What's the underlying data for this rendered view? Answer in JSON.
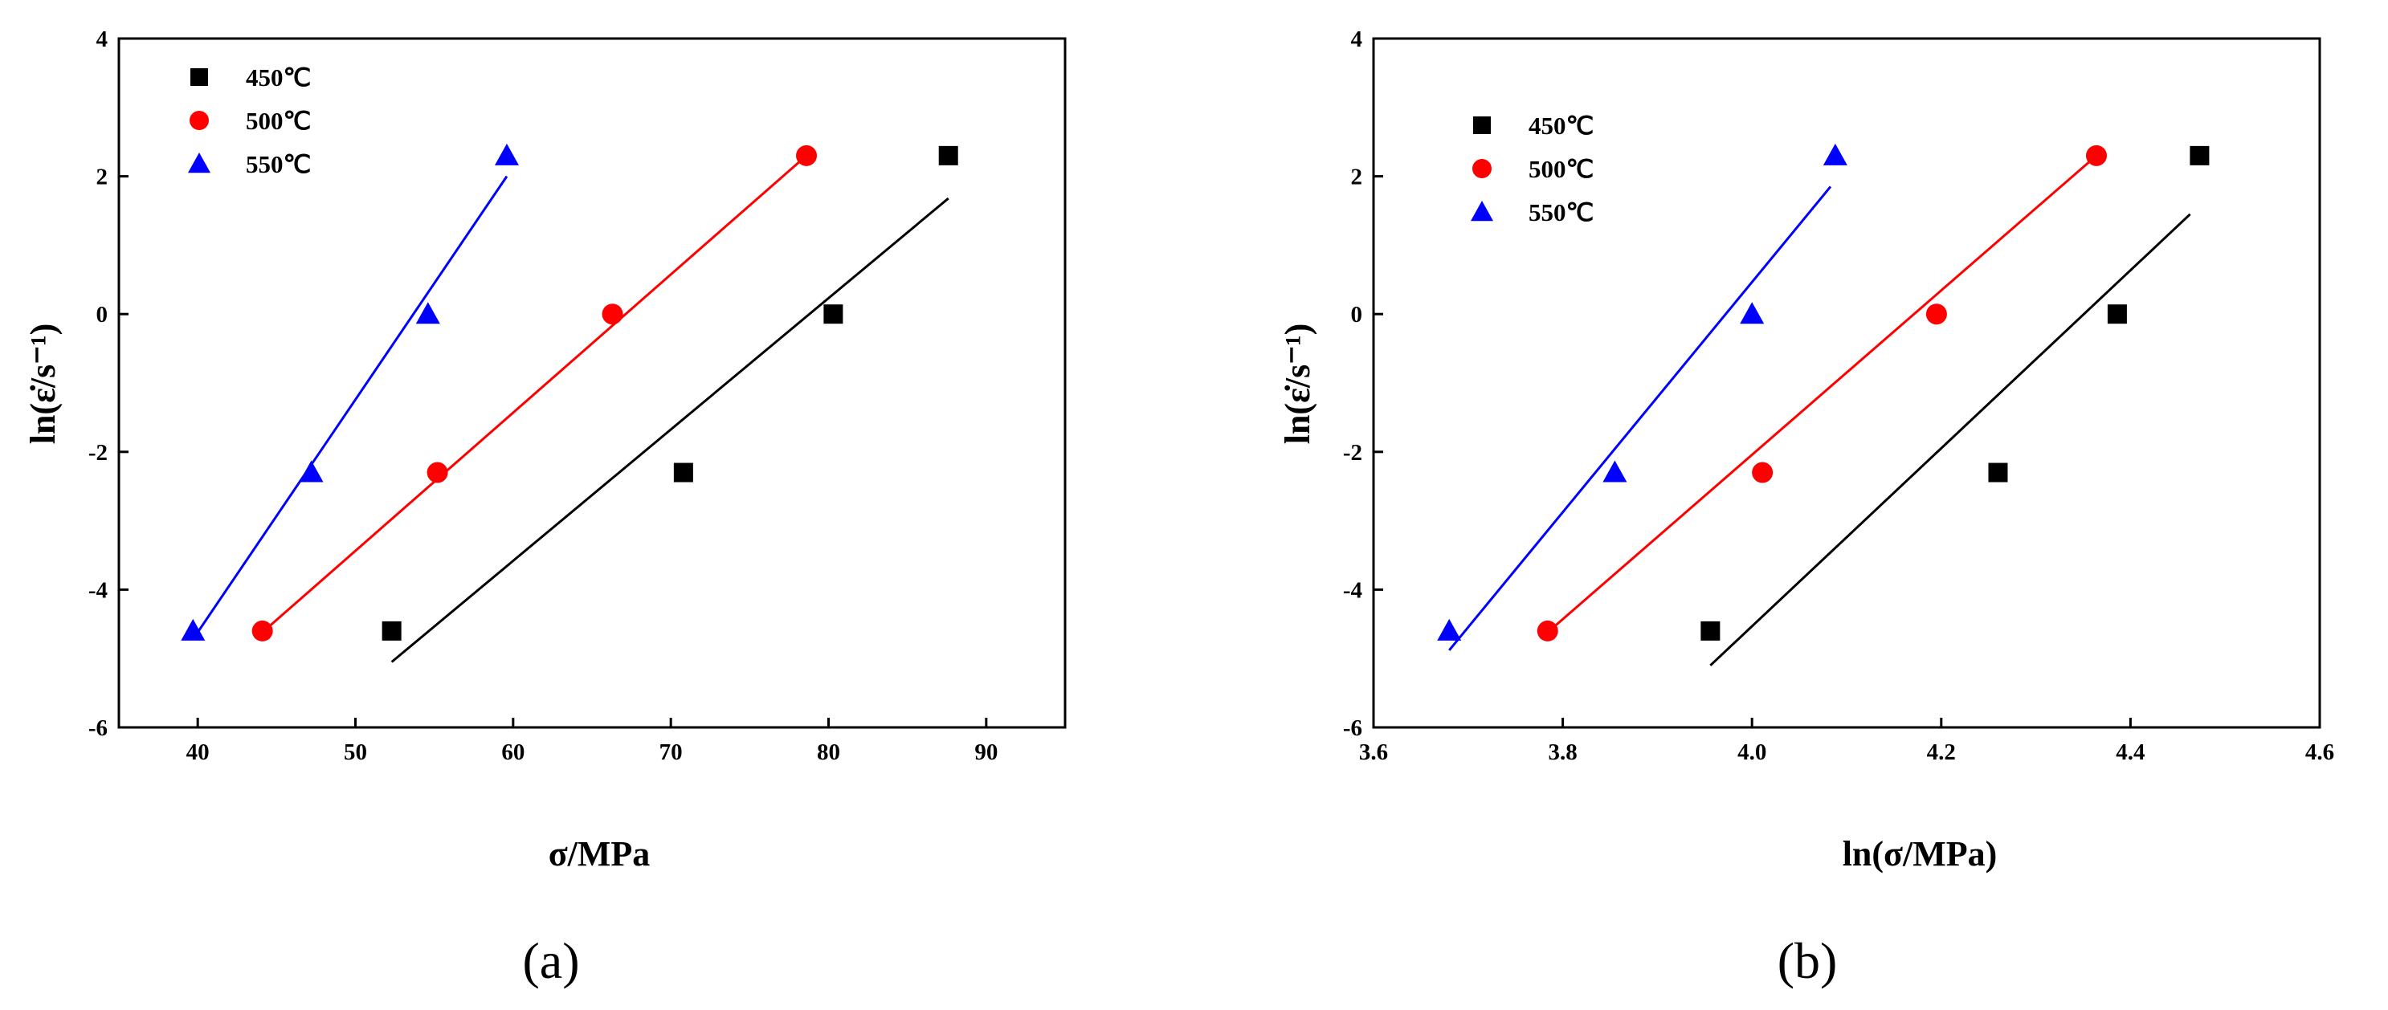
{
  "chart_data": [
    {
      "type": "scatter",
      "panel_label": "(a)",
      "xlabel": "σ/MPa",
      "ylabel": "ln(ε̇/s⁻¹)",
      "xlim": [
        35,
        95
      ],
      "ylim": [
        -6,
        4
      ],
      "xticks": [
        "40",
        "50",
        "60",
        "70",
        "80",
        "90"
      ],
      "yticks": [
        "-6",
        "-4",
        "-2",
        "0",
        "2",
        "4"
      ],
      "legend_position": "top-left",
      "series": [
        {
          "name": "450℃",
          "marker": "square",
          "color": "#000000",
          "x": [
            52.3,
            70.8,
            80.3,
            87.6
          ],
          "y": [
            -4.6,
            -2.3,
            0,
            2.3
          ],
          "fit": {
            "x": [
              52.3,
              87.6
            ],
            "y": [
              -5.05,
              1.68
            ]
          }
        },
        {
          "name": "500℃",
          "marker": "circle",
          "color": "#ff0000",
          "x": [
            44.1,
            55.2,
            66.3,
            78.6
          ],
          "y": [
            -4.6,
            -2.3,
            0,
            2.3
          ],
          "fit": {
            "x": [
              44.1,
              78.6
            ],
            "y": [
              -4.62,
              2.3
            ]
          }
        },
        {
          "name": "550℃",
          "marker": "triangle",
          "color": "#0000ff",
          "x": [
            39.7,
            47.2,
            54.6,
            59.6
          ],
          "y": [
            -4.6,
            -2.3,
            0,
            2.3
          ],
          "fit": {
            "x": [
              39.7,
              59.6
            ],
            "y": [
              -4.72,
              2.0
            ]
          }
        }
      ]
    },
    {
      "type": "scatter",
      "panel_label": "(b)",
      "xlabel": "ln(σ/MPa)",
      "ylabel": "ln(ε̇/s⁻¹)",
      "xlim": [
        3.6,
        4.6
      ],
      "ylim": [
        -6,
        4
      ],
      "xticks": [
        "3.6",
        "3.8",
        "4.0",
        "4.2",
        "4.4",
        "4.6"
      ],
      "yticks": [
        "-6",
        "-4",
        "-2",
        "0",
        "2",
        "4"
      ],
      "legend_position": "top-left",
      "series": [
        {
          "name": "450℃",
          "marker": "square",
          "color": "#000000",
          "x": [
            3.956,
            4.26,
            4.386,
            4.473
          ],
          "y": [
            -4.6,
            -2.3,
            0,
            2.3
          ],
          "fit": {
            "x": [
              3.956,
              4.463
            ],
            "y": [
              -5.1,
              1.45
            ]
          }
        },
        {
          "name": "500℃",
          "marker": "circle",
          "color": "#ff0000",
          "x": [
            3.784,
            4.011,
            4.195,
            4.364
          ],
          "y": [
            -4.6,
            -2.3,
            0,
            2.3
          ],
          "fit": {
            "x": [
              3.784,
              4.364
            ],
            "y": [
              -4.62,
              2.3
            ]
          }
        },
        {
          "name": "550℃",
          "marker": "triangle",
          "color": "#0000ff",
          "x": [
            3.68,
            3.855,
            4.0,
            4.088
          ],
          "y": [
            -4.6,
            -2.3,
            0,
            2.3
          ],
          "fit": {
            "x": [
              3.68,
              4.083
            ],
            "y": [
              -4.88,
              1.85
            ]
          }
        }
      ]
    }
  ]
}
